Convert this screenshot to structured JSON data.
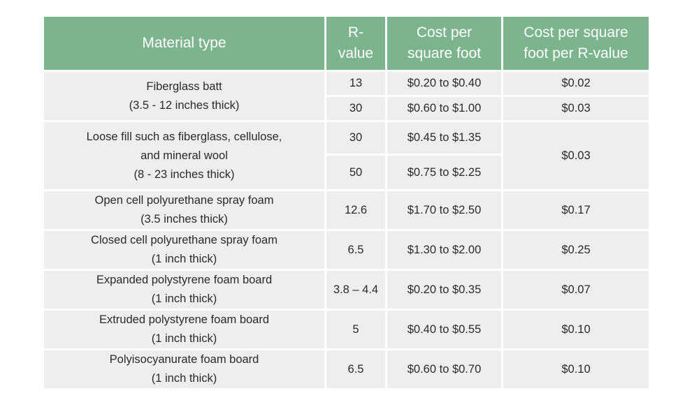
{
  "table": {
    "headers": {
      "material": [
        "Material type"
      ],
      "r_value": [
        "R-",
        "value"
      ],
      "cost": [
        "Cost per",
        "square foot"
      ],
      "cost_per_r": [
        "Cost per square",
        "foot per R-value"
      ]
    },
    "groups": [
      {
        "material": [
          "Fiberglass batt",
          "(3.5 - 12 inches thick)"
        ],
        "rows": [
          {
            "r_value": "13",
            "cost": "$0.20 to $0.40",
            "cost_per_r": "$0.02"
          },
          {
            "r_value": "30",
            "cost": "$0.60 to $1.00",
            "cost_per_r": "$0.03"
          }
        ]
      },
      {
        "material": [
          "Loose fill such as fiberglass, cellulose,",
          "and mineral wool",
          "(8 - 23 inches thick)"
        ],
        "cost_per_r": "$0.03",
        "rows": [
          {
            "r_value": "30",
            "cost": "$0.45 to $1.35"
          },
          {
            "r_value": "50",
            "cost": "$0.75 to $2.25"
          }
        ]
      },
      {
        "material": [
          "Open cell polyurethane spray foam",
          "(3.5 inches thick)"
        ],
        "rows": [
          {
            "r_value": "12.6",
            "cost": "$1.70 to $2.50",
            "cost_per_r": "$0.17"
          }
        ]
      },
      {
        "material": [
          "Closed cell polyurethane spray foam",
          "(1 inch thick)"
        ],
        "rows": [
          {
            "r_value": "6.5",
            "cost": "$1.30 to $2.00",
            "cost_per_r": "$0.25"
          }
        ]
      },
      {
        "material": [
          "Expanded polystyrene foam board",
          "(1 inch thick)"
        ],
        "rows": [
          {
            "r_value": "3.8 – 4.4",
            "cost": "$0.20 to $0.35",
            "cost_per_r": "$0.07"
          }
        ]
      },
      {
        "material": [
          "Extruded polystyrene foam board",
          "(1 inch thick)"
        ],
        "rows": [
          {
            "r_value": "5",
            "cost": "$0.40 to $0.55",
            "cost_per_r": "$0.10"
          }
        ]
      },
      {
        "material": [
          "Polyisocyanurate foam board",
          "(1 inch thick)"
        ],
        "rows": [
          {
            "r_value": "6.5",
            "cost": "$0.60 to $0.70",
            "cost_per_r": "$0.10"
          }
        ]
      }
    ],
    "colors": {
      "header_bg": "#7cb48d",
      "header_text": "#ffffff",
      "cell_bg": "#eeeeee",
      "cell_text": "#2a2a2a"
    }
  }
}
